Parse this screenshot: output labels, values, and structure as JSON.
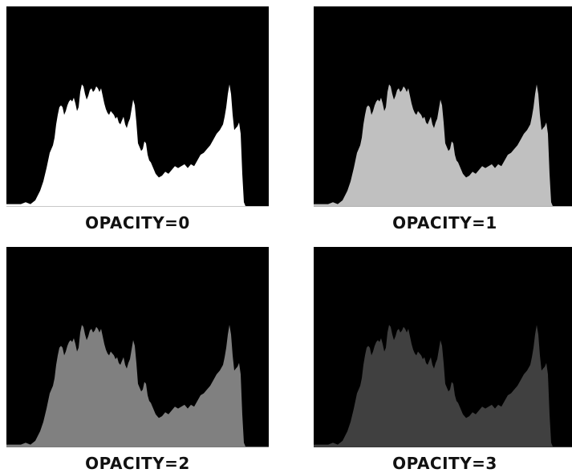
{
  "chart_data": [
    {
      "type": "area",
      "title": "OPACITY=0",
      "background": "#000000",
      "fill": "#ffffff",
      "baseline": "#c8c8c8",
      "xlim": [
        0,
        327
      ],
      "ylim": [
        0,
        1
      ],
      "grid": false,
      "x": [
        0,
        18,
        24,
        30,
        36,
        42,
        46,
        50,
        54,
        58,
        60,
        62,
        64,
        66,
        68,
        70,
        72,
        74,
        76,
        78,
        80,
        82,
        84,
        86,
        88,
        90,
        92,
        94,
        96,
        98,
        100,
        102,
        104,
        106,
        108,
        110,
        112,
        114,
        116,
        118,
        120,
        122,
        124,
        126,
        128,
        130,
        132,
        134,
        136,
        138,
        140,
        142,
        144,
        146,
        148,
        150,
        152,
        154,
        156,
        158,
        160,
        162,
        164,
        166,
        168,
        170,
        172,
        174,
        176,
        178,
        180,
        182,
        184,
        186,
        188,
        190,
        194,
        198,
        202,
        206,
        210,
        214,
        218,
        222,
        226,
        230,
        234,
        238,
        242,
        246,
        250,
        254,
        258,
        262,
        266,
        270,
        272,
        274,
        276,
        278,
        280,
        282,
        284,
        286,
        288,
        290,
        292,
        294,
        296,
        298,
        300,
        327
      ],
      "values": [
        0.01,
        0.01,
        0.02,
        0.01,
        0.03,
        0.08,
        0.13,
        0.2,
        0.28,
        0.32,
        0.36,
        0.43,
        0.48,
        0.52,
        0.53,
        0.52,
        0.48,
        0.5,
        0.53,
        0.55,
        0.56,
        0.55,
        0.57,
        0.54,
        0.5,
        0.52,
        0.6,
        0.64,
        0.63,
        0.59,
        0.56,
        0.58,
        0.61,
        0.62,
        0.6,
        0.61,
        0.63,
        0.62,
        0.6,
        0.62,
        0.58,
        0.54,
        0.51,
        0.49,
        0.48,
        0.5,
        0.49,
        0.48,
        0.46,
        0.47,
        0.44,
        0.43,
        0.45,
        0.47,
        0.43,
        0.41,
        0.44,
        0.46,
        0.51,
        0.56,
        0.53,
        0.44,
        0.33,
        0.31,
        0.29,
        0.3,
        0.34,
        0.33,
        0.27,
        0.24,
        0.23,
        0.21,
        0.19,
        0.17,
        0.16,
        0.15,
        0.16,
        0.18,
        0.17,
        0.19,
        0.21,
        0.2,
        0.21,
        0.22,
        0.2,
        0.22,
        0.21,
        0.24,
        0.27,
        0.28,
        0.3,
        0.32,
        0.35,
        0.38,
        0.4,
        0.43,
        0.47,
        0.52,
        0.59,
        0.64,
        0.59,
        0.48,
        0.4,
        0.41,
        0.42,
        0.44,
        0.38,
        0.17,
        0.02,
        0.0,
        0.0,
        0.0
      ]
    },
    {
      "type": "area",
      "title": "OPACITY=1",
      "background": "#000000",
      "fill": "#c0c0c0",
      "baseline": "#b0b0b0",
      "xlim": [
        0,
        327
      ],
      "ylim": [
        0,
        1
      ],
      "grid": false,
      "x": [
        0,
        18,
        24,
        30,
        36,
        42,
        46,
        50,
        54,
        58,
        60,
        62,
        64,
        66,
        68,
        70,
        72,
        74,
        76,
        78,
        80,
        82,
        84,
        86,
        88,
        90,
        92,
        94,
        96,
        98,
        100,
        102,
        104,
        106,
        108,
        110,
        112,
        114,
        116,
        118,
        120,
        122,
        124,
        126,
        128,
        130,
        132,
        134,
        136,
        138,
        140,
        142,
        144,
        146,
        148,
        150,
        152,
        154,
        156,
        158,
        160,
        162,
        164,
        166,
        168,
        170,
        172,
        174,
        176,
        178,
        180,
        182,
        184,
        186,
        188,
        190,
        194,
        198,
        202,
        206,
        210,
        214,
        218,
        222,
        226,
        230,
        234,
        238,
        242,
        246,
        250,
        254,
        258,
        262,
        266,
        270,
        272,
        274,
        276,
        278,
        280,
        282,
        284,
        286,
        288,
        290,
        292,
        294,
        296,
        298,
        300,
        327
      ],
      "values": [
        0.01,
        0.01,
        0.02,
        0.01,
        0.03,
        0.08,
        0.13,
        0.2,
        0.28,
        0.32,
        0.36,
        0.43,
        0.48,
        0.52,
        0.53,
        0.52,
        0.48,
        0.5,
        0.53,
        0.55,
        0.56,
        0.55,
        0.57,
        0.54,
        0.5,
        0.52,
        0.6,
        0.64,
        0.63,
        0.59,
        0.56,
        0.58,
        0.61,
        0.62,
        0.6,
        0.61,
        0.63,
        0.62,
        0.6,
        0.62,
        0.58,
        0.54,
        0.51,
        0.49,
        0.48,
        0.5,
        0.49,
        0.48,
        0.46,
        0.47,
        0.44,
        0.43,
        0.45,
        0.47,
        0.43,
        0.41,
        0.44,
        0.46,
        0.51,
        0.56,
        0.53,
        0.44,
        0.33,
        0.31,
        0.29,
        0.3,
        0.34,
        0.33,
        0.27,
        0.24,
        0.23,
        0.21,
        0.19,
        0.17,
        0.16,
        0.15,
        0.16,
        0.18,
        0.17,
        0.19,
        0.21,
        0.2,
        0.21,
        0.22,
        0.2,
        0.22,
        0.21,
        0.24,
        0.27,
        0.28,
        0.3,
        0.32,
        0.35,
        0.38,
        0.4,
        0.43,
        0.47,
        0.52,
        0.59,
        0.64,
        0.59,
        0.48,
        0.4,
        0.41,
        0.42,
        0.44,
        0.38,
        0.17,
        0.02,
        0.0,
        0.0,
        0.0
      ]
    },
    {
      "type": "area",
      "title": "OPACITY=2",
      "background": "#000000",
      "fill": "#808080",
      "baseline": "#7a7a7a",
      "xlim": [
        0,
        327
      ],
      "ylim": [
        0,
        1
      ],
      "grid": false,
      "x": [
        0,
        18,
        24,
        30,
        36,
        42,
        46,
        50,
        54,
        58,
        60,
        62,
        64,
        66,
        68,
        70,
        72,
        74,
        76,
        78,
        80,
        82,
        84,
        86,
        88,
        90,
        92,
        94,
        96,
        98,
        100,
        102,
        104,
        106,
        108,
        110,
        112,
        114,
        116,
        118,
        120,
        122,
        124,
        126,
        128,
        130,
        132,
        134,
        136,
        138,
        140,
        142,
        144,
        146,
        148,
        150,
        152,
        154,
        156,
        158,
        160,
        162,
        164,
        166,
        168,
        170,
        172,
        174,
        176,
        178,
        180,
        182,
        184,
        186,
        188,
        190,
        194,
        198,
        202,
        206,
        210,
        214,
        218,
        222,
        226,
        230,
        234,
        238,
        242,
        246,
        250,
        254,
        258,
        262,
        266,
        270,
        272,
        274,
        276,
        278,
        280,
        282,
        284,
        286,
        288,
        290,
        292,
        294,
        296,
        298,
        300,
        327
      ],
      "values": [
        0.01,
        0.01,
        0.02,
        0.01,
        0.03,
        0.08,
        0.13,
        0.2,
        0.28,
        0.32,
        0.36,
        0.43,
        0.48,
        0.52,
        0.53,
        0.52,
        0.48,
        0.5,
        0.53,
        0.55,
        0.56,
        0.55,
        0.57,
        0.54,
        0.5,
        0.52,
        0.6,
        0.64,
        0.63,
        0.59,
        0.56,
        0.58,
        0.61,
        0.62,
        0.6,
        0.61,
        0.63,
        0.62,
        0.6,
        0.62,
        0.58,
        0.54,
        0.51,
        0.49,
        0.48,
        0.5,
        0.49,
        0.48,
        0.46,
        0.47,
        0.44,
        0.43,
        0.45,
        0.47,
        0.43,
        0.41,
        0.44,
        0.46,
        0.51,
        0.56,
        0.53,
        0.44,
        0.33,
        0.31,
        0.29,
        0.3,
        0.34,
        0.33,
        0.27,
        0.24,
        0.23,
        0.21,
        0.19,
        0.17,
        0.16,
        0.15,
        0.16,
        0.18,
        0.17,
        0.19,
        0.21,
        0.2,
        0.21,
        0.22,
        0.2,
        0.22,
        0.21,
        0.24,
        0.27,
        0.28,
        0.3,
        0.32,
        0.35,
        0.38,
        0.4,
        0.43,
        0.47,
        0.52,
        0.59,
        0.64,
        0.59,
        0.48,
        0.4,
        0.41,
        0.42,
        0.44,
        0.38,
        0.17,
        0.02,
        0.0,
        0.0,
        0.0
      ]
    },
    {
      "type": "area",
      "title": "OPACITY=3",
      "background": "#000000",
      "fill": "#404040",
      "baseline": "#3a3a3a",
      "xlim": [
        0,
        327
      ],
      "ylim": [
        0,
        1
      ],
      "grid": false,
      "x": [
        0,
        18,
        24,
        30,
        36,
        42,
        46,
        50,
        54,
        58,
        60,
        62,
        64,
        66,
        68,
        70,
        72,
        74,
        76,
        78,
        80,
        82,
        84,
        86,
        88,
        90,
        92,
        94,
        96,
        98,
        100,
        102,
        104,
        106,
        108,
        110,
        112,
        114,
        116,
        118,
        120,
        122,
        124,
        126,
        128,
        130,
        132,
        134,
        136,
        138,
        140,
        142,
        144,
        146,
        148,
        150,
        152,
        154,
        156,
        158,
        160,
        162,
        164,
        166,
        168,
        170,
        172,
        174,
        176,
        178,
        180,
        182,
        184,
        186,
        188,
        190,
        194,
        198,
        202,
        206,
        210,
        214,
        218,
        222,
        226,
        230,
        234,
        238,
        242,
        246,
        250,
        254,
        258,
        262,
        266,
        270,
        272,
        274,
        276,
        278,
        280,
        282,
        284,
        286,
        288,
        290,
        292,
        294,
        296,
        298,
        300,
        327
      ],
      "values": [
        0.01,
        0.01,
        0.02,
        0.01,
        0.03,
        0.08,
        0.13,
        0.2,
        0.28,
        0.32,
        0.36,
        0.43,
        0.48,
        0.52,
        0.53,
        0.52,
        0.48,
        0.5,
        0.53,
        0.55,
        0.56,
        0.55,
        0.57,
        0.54,
        0.5,
        0.52,
        0.6,
        0.64,
        0.63,
        0.59,
        0.56,
        0.58,
        0.61,
        0.62,
        0.6,
        0.61,
        0.63,
        0.62,
        0.6,
        0.62,
        0.58,
        0.54,
        0.51,
        0.49,
        0.48,
        0.5,
        0.49,
        0.48,
        0.46,
        0.47,
        0.44,
        0.43,
        0.45,
        0.47,
        0.43,
        0.41,
        0.44,
        0.46,
        0.51,
        0.56,
        0.53,
        0.44,
        0.33,
        0.31,
        0.29,
        0.3,
        0.34,
        0.33,
        0.27,
        0.24,
        0.23,
        0.21,
        0.19,
        0.17,
        0.16,
        0.15,
        0.16,
        0.18,
        0.17,
        0.19,
        0.21,
        0.2,
        0.21,
        0.22,
        0.2,
        0.22,
        0.21,
        0.24,
        0.27,
        0.28,
        0.3,
        0.32,
        0.35,
        0.38,
        0.4,
        0.43,
        0.47,
        0.52,
        0.59,
        0.64,
        0.59,
        0.48,
        0.4,
        0.41,
        0.42,
        0.44,
        0.38,
        0.17,
        0.02,
        0.0,
        0.0,
        0.0
      ]
    }
  ]
}
